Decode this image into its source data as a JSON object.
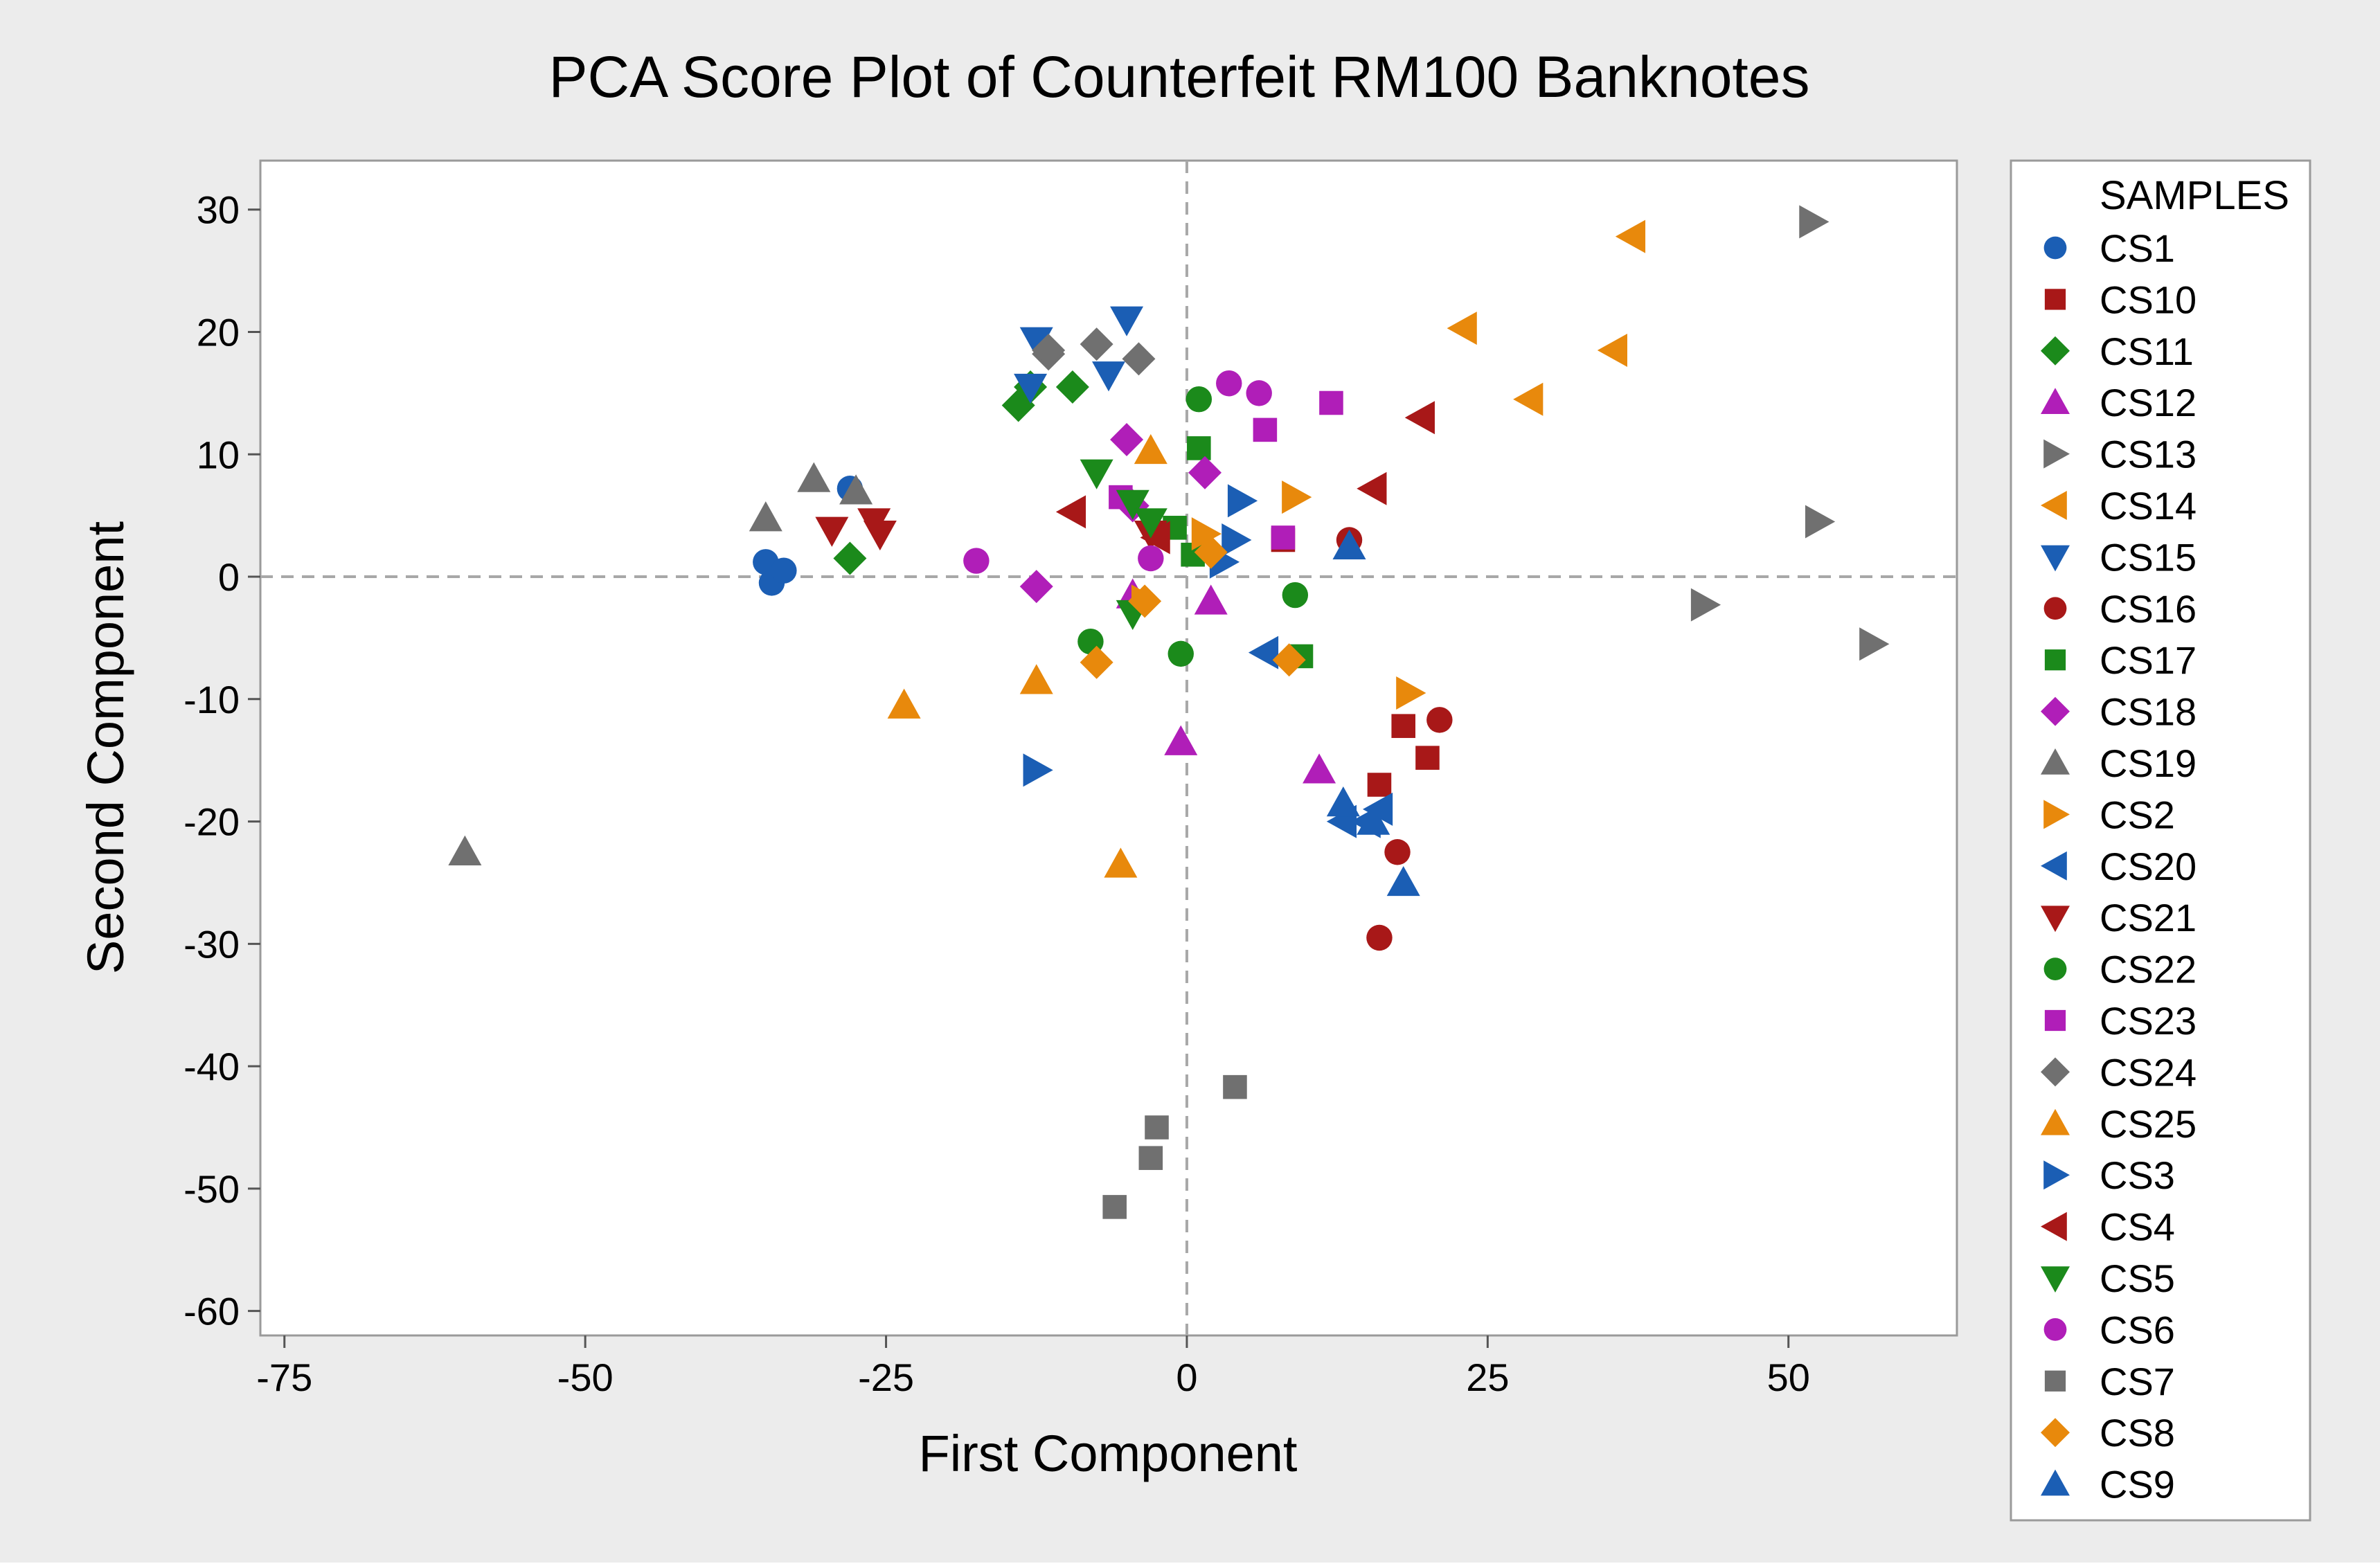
{
  "chart_data": {
    "type": "scatter",
    "title": "PCA Score Plot of Counterfeit RM100 Banknotes",
    "xlabel": "First Component",
    "ylabel": "Second Component",
    "xlim": [
      -77,
      64
    ],
    "ylim": [
      -62,
      34
    ],
    "xticks": [
      "-75",
      "-50",
      "-25",
      "0",
      "25",
      "50"
    ],
    "xtick_values": [
      -75,
      -50,
      -25,
      0,
      25,
      50
    ],
    "yticks": [
      "30",
      "20",
      "10",
      "0",
      "-10",
      "-20",
      "-30",
      "-40",
      "-50",
      "-60"
    ],
    "ytick_values": [
      30,
      20,
      10,
      0,
      -10,
      -20,
      -30,
      -40,
      -50,
      -60
    ],
    "reference_lines": {
      "x": 0,
      "y": 0
    },
    "legend": {
      "title": "SAMPLES",
      "position": "right"
    },
    "series": [
      {
        "name": "CS1",
        "color": "#1B5EB4",
        "marker": "circle",
        "points": [
          [
            -35,
            1.2
          ],
          [
            -34.5,
            -0.5
          ],
          [
            -33.5,
            0.5
          ],
          [
            -28,
            7.2
          ]
        ]
      },
      {
        "name": "CS10",
        "color": "#A81818",
        "marker": "square",
        "points": [
          [
            8,
            3
          ],
          [
            18,
            -12.2
          ],
          [
            20,
            -14.8
          ],
          [
            16,
            -17
          ]
        ]
      },
      {
        "name": "CS11",
        "color": "#1B8A1B",
        "marker": "diamond",
        "points": [
          [
            -28,
            1.5
          ],
          [
            -14,
            14
          ],
          [
            -13,
            15.5
          ],
          [
            -9.5,
            15.5
          ]
        ]
      },
      {
        "name": "CS12",
        "color": "#B01EB8",
        "marker": "triangle-up",
        "points": [
          [
            -4.5,
            -1.5
          ],
          [
            -0.5,
            -13.5
          ],
          [
            2,
            -2
          ],
          [
            11,
            -15.8
          ]
        ]
      },
      {
        "name": "CS13",
        "color": "#707070",
        "marker": "triangle-right",
        "points": [
          [
            52,
            29
          ],
          [
            52.5,
            4.5
          ],
          [
            43,
            -2.3
          ],
          [
            57,
            -5.5
          ]
        ]
      },
      {
        "name": "CS14",
        "color": "#E8890C",
        "marker": "triangle-left",
        "points": [
          [
            37,
            27.8
          ],
          [
            23,
            20.3
          ],
          [
            28.5,
            14.5
          ],
          [
            35.5,
            18.5
          ]
        ]
      },
      {
        "name": "CS15",
        "color": "#1B5EB4",
        "marker": "triangle-down",
        "points": [
          [
            -12.5,
            19.3
          ],
          [
            -5,
            21
          ],
          [
            -6.5,
            16.5
          ],
          [
            -13,
            15.5
          ]
        ]
      },
      {
        "name": "CS16",
        "color": "#A81818",
        "marker": "circle",
        "points": [
          [
            13.5,
            3
          ],
          [
            21,
            -11.7
          ],
          [
            17.5,
            -22.5
          ],
          [
            16,
            -29.5
          ]
        ]
      },
      {
        "name": "CS17",
        "color": "#1B8A1B",
        "marker": "square",
        "points": [
          [
            1,
            10.5
          ],
          [
            -1,
            4
          ],
          [
            0.5,
            1.8
          ],
          [
            9.5,
            -6.5
          ]
        ]
      },
      {
        "name": "CS18",
        "color": "#B01EB8",
        "marker": "diamond",
        "points": [
          [
            -5,
            11.2
          ],
          [
            1.5,
            8.5
          ],
          [
            -4.5,
            5.8
          ],
          [
            -12.5,
            -0.8
          ]
        ]
      },
      {
        "name": "CS19",
        "color": "#707070",
        "marker": "triangle-up",
        "points": [
          [
            -35,
            4.8
          ],
          [
            -31,
            8
          ],
          [
            -27.5,
            7
          ],
          [
            -60,
            -22.5
          ]
        ]
      },
      {
        "name": "CS2",
        "color": "#E8890C",
        "marker": "triangle-right",
        "points": [
          [
            9,
            6.5
          ],
          [
            1.5,
            3.5
          ],
          [
            -3.5,
            -2
          ],
          [
            18.5,
            -9.5
          ]
        ]
      },
      {
        "name": "CS20",
        "color": "#1B5EB4",
        "marker": "triangle-left",
        "points": [
          [
            6.5,
            -6.2
          ],
          [
            13,
            -20
          ],
          [
            15,
            -20
          ],
          [
            16,
            -19
          ]
        ]
      },
      {
        "name": "CS21",
        "color": "#A81818",
        "marker": "triangle-down",
        "points": [
          [
            -29.5,
            3.8
          ],
          [
            -26,
            4.5
          ],
          [
            -25.5,
            3.5
          ],
          [
            -3,
            3.5
          ]
        ]
      },
      {
        "name": "CS22",
        "color": "#1B8A1B",
        "marker": "circle",
        "points": [
          [
            1,
            14.5
          ],
          [
            9,
            -1.5
          ],
          [
            -8,
            -5.3
          ],
          [
            -0.5,
            -6.3
          ]
        ]
      },
      {
        "name": "CS23",
        "color": "#B01EB8",
        "marker": "square",
        "points": [
          [
            12,
            14.2
          ],
          [
            6.5,
            12
          ],
          [
            -5.5,
            6.5
          ],
          [
            8,
            3.2
          ]
        ]
      },
      {
        "name": "CS24",
        "color": "#707070",
        "marker": "diamond",
        "points": [
          [
            -11.5,
            18.2
          ],
          [
            -7.5,
            19
          ],
          [
            -4,
            17.8
          ],
          [
            -11.5,
            18.5
          ]
        ]
      },
      {
        "name": "CS25",
        "color": "#E8890C",
        "marker": "triangle-up",
        "points": [
          [
            -3,
            10.3
          ],
          [
            -23.5,
            -10.5
          ],
          [
            -12.5,
            -8.5
          ],
          [
            -5.5,
            -23.5
          ]
        ]
      },
      {
        "name": "CS3",
        "color": "#1B5EB4",
        "marker": "triangle-right",
        "points": [
          [
            4.5,
            6.2
          ],
          [
            4,
            3
          ],
          [
            3,
            1.2
          ],
          [
            -12.5,
            -15.8
          ]
        ]
      },
      {
        "name": "CS4",
        "color": "#A81818",
        "marker": "triangle-left",
        "points": [
          [
            19.5,
            13
          ],
          [
            15.5,
            7.2
          ],
          [
            -9.5,
            5.3
          ],
          [
            -2.5,
            3.2
          ]
        ]
      },
      {
        "name": "CS5",
        "color": "#1B8A1B",
        "marker": "triangle-down",
        "points": [
          [
            -7.5,
            8.5
          ],
          [
            -4.5,
            6
          ],
          [
            -3,
            4.5
          ],
          [
            -4.5,
            -3
          ]
        ]
      },
      {
        "name": "CS6",
        "color": "#B01EB8",
        "marker": "circle",
        "points": [
          [
            -17.5,
            1.3
          ],
          [
            3.5,
            15.8
          ],
          [
            6,
            15
          ],
          [
            -3,
            1.5
          ]
        ]
      },
      {
        "name": "CS7",
        "color": "#707070",
        "marker": "square",
        "points": [
          [
            4,
            -41.7
          ],
          [
            -2.5,
            -45
          ],
          [
            -3,
            -47.5
          ],
          [
            -6,
            -51.5
          ]
        ]
      },
      {
        "name": "CS8",
        "color": "#E8890C",
        "marker": "diamond",
        "points": [
          [
            -7.5,
            -7
          ],
          [
            8.5,
            -6.8
          ],
          [
            -3.5,
            -2
          ],
          [
            2,
            2
          ]
        ]
      },
      {
        "name": "CS9",
        "color": "#1B5EB4",
        "marker": "triangle-up",
        "points": [
          [
            13.5,
            2.5
          ],
          [
            13,
            -18.5
          ],
          [
            18,
            -25
          ],
          [
            15.5,
            -20
          ]
        ]
      }
    ]
  }
}
